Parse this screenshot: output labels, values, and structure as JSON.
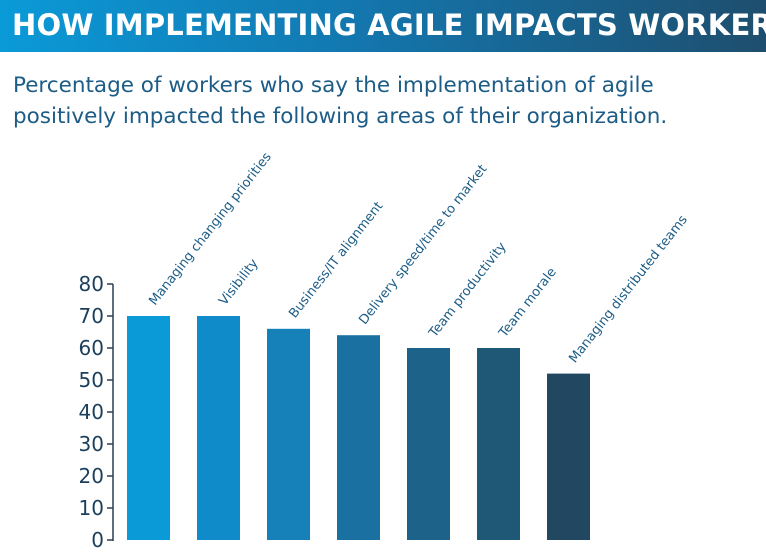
{
  "header": {
    "title": "HOW IMPLEMENTING AGILE IMPACTS WORKERS",
    "subtitle": "Percentage of workers who say the implementation of agile positively impacted the following areas of their organization."
  },
  "colors": {
    "banner_start": "#0a9ad8",
    "banner_end": "#1e4e6e",
    "subtitle_text": "#1c5c86",
    "axis": "#2a3e50"
  },
  "chart_data": {
    "type": "bar",
    "title": "HOW IMPLEMENTING AGILE IMPACTS WORKERS",
    "subtitle": "Percentage of workers who say the implementation of agile positively impacted the following areas of their organization.",
    "xlabel": "",
    "ylabel": "",
    "categories": [
      "Managing changing priorities",
      "Visibility",
      "Business/IT alignment",
      "Delivery speed/time to market",
      "Team productivity",
      "Team morale",
      "Managing distributed teams"
    ],
    "values": [
      70,
      70,
      66,
      64,
      60,
      60,
      52
    ],
    "bar_colors": [
      "#0a9ad8",
      "#0f8bc9",
      "#1680b8",
      "#1a71a1",
      "#1d6389",
      "#1f5777",
      "#214860"
    ],
    "ylim": [
      0,
      80
    ],
    "yticks": [
      0,
      10,
      20,
      30,
      40,
      50,
      60,
      70,
      80
    ],
    "grid": false,
    "legend": "none"
  }
}
